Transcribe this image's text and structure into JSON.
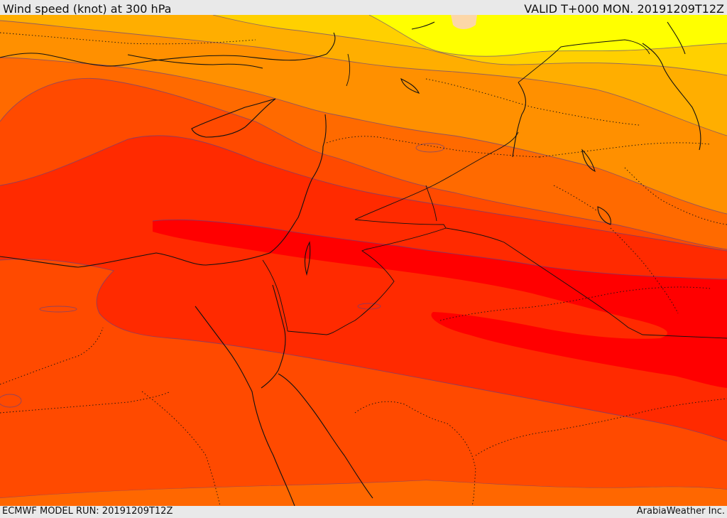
{
  "header": {
    "title": "Wind speed (knot) at 300 hPa",
    "valid": "VALID T+000 MON. 20191209T12Z"
  },
  "footer": {
    "model_run": "ECMWF MODEL RUN: 20191209T12Z",
    "credit": "ArabiaWeather Inc."
  },
  "colors": {
    "yellow": "#ffff00",
    "gold": "#ffd000",
    "orange_light": "#ffae00",
    "orange": "#ff9000",
    "orange_dark": "#ff6a00",
    "red_orange": "#ff4a00",
    "red": "#ff2a00",
    "red_max": "#ff0000",
    "land_pale": "#fcd7a8"
  }
}
